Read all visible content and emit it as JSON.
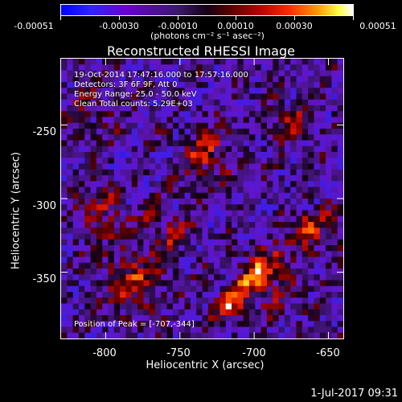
{
  "colorbar": {
    "tick_labels": [
      "-0.00051",
      "-0.00030",
      "-0.00010",
      "0.00010",
      "0.00030",
      "0.00051"
    ],
    "units": "(photons cm⁻² s⁻¹ asec⁻²)"
  },
  "plot": {
    "title": "Reconstructed RHESSI Image",
    "info_lines": [
      "19-Oct-2014 17:47:16.000 to 17:57:16.000",
      "Detectors: 3F 6F 9F, Att 0",
      "Energy Range: 25.0 - 50.0 keV",
      "Clean     Total counts: 5.29E+03"
    ],
    "peak_label": "Position of Peak = [-707,-344]",
    "xlabel": "Heliocentric X (arcsec)",
    "ylabel": "Heliocentric Y (arcsec)",
    "xticks": [
      "-800",
      "-750",
      "-700",
      "-650"
    ],
    "yticks": [
      "-250",
      "-300",
      "-350"
    ],
    "xlim": [
      -830,
      -640
    ],
    "ylim": [
      -395,
      -205
    ]
  },
  "timestamp": "1-Jul-2017 09:31",
  "colors": {
    "min": "#0000ff",
    "zero": "#150015",
    "max": "#ffffff"
  }
}
